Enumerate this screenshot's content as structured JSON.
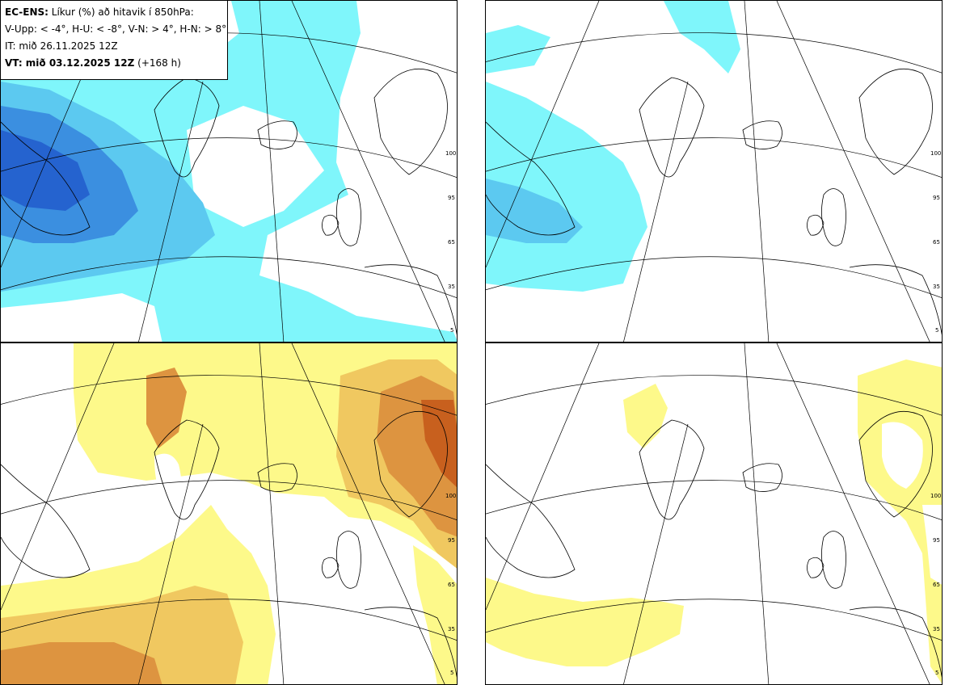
{
  "info": {
    "line1_bold": "EC-ENS:",
    "line1_rest": "Líkur (%) að hitavik í 850hPa:",
    "line2": "V-Upp: < -4°, H-U: < -8°, V-N: > 4°, H-N: > 8°",
    "line3": "IT: mið 26.11.2025 12Z",
    "line4_bold": "VT: mið 03.12.2025 12Z",
    "line4_rest": "(+168 h)"
  },
  "colorbar_ticks": [
    "100",
    "95",
    "65",
    "35",
    "5"
  ],
  "colors": {
    "cold_low": "#7ff6fb",
    "cold_mid": "#5cc9f0",
    "cold_high": "#3b8fe0",
    "cold_top": "#2563cf",
    "warm_low": "#fdf98a",
    "warm_mid": "#f0c860",
    "warm_high": "#dd9440",
    "warm_top": "#c8601e"
  },
  "panels": [
    {
      "id": "cold-4",
      "palette": "cold"
    },
    {
      "id": "cold-8",
      "palette": "cold"
    },
    {
      "id": "warm-4",
      "palette": "warm"
    },
    {
      "id": "warm-8",
      "palette": "warm"
    }
  ]
}
